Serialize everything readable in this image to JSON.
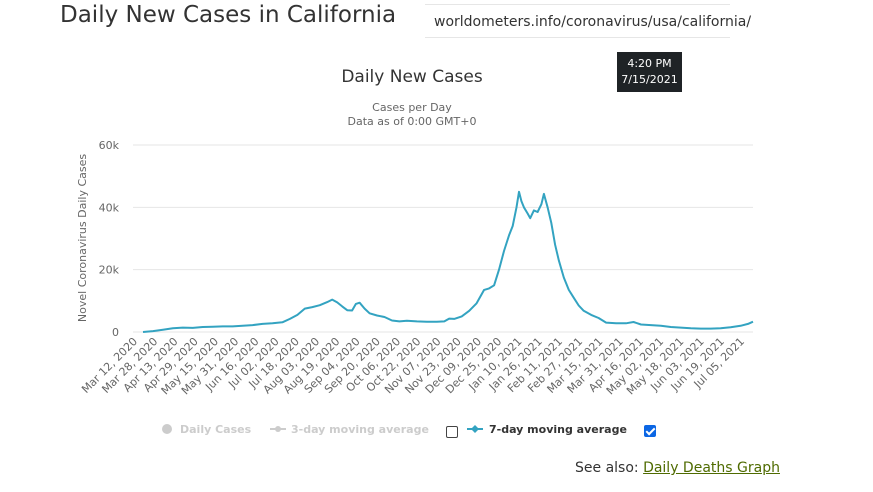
{
  "page": {
    "title": "Daily New Cases in California",
    "url": "worldometers.info/coronavirus/usa/california/",
    "time": "4:20 PM",
    "date": "7/15/2021"
  },
  "see_also": {
    "label": "See also:",
    "link": "Daily Deaths Graph"
  },
  "colors": {
    "line": "#33a3c1",
    "grid": "#e6e6e6",
    "legend_inactive": "#cccccc",
    "checkbox_checked": "#0b66e4"
  },
  "chart_data": {
    "type": "line",
    "title": "Daily New Cases",
    "subtitle": [
      "Cases per Day",
      "Data as of 0:00 GMT+0"
    ],
    "ylabel": "Novel Coronavirus Daily Cases",
    "xlabel": "",
    "ylim": [
      0,
      60000
    ],
    "y_ticks": [
      {
        "value": 0,
        "label": "0"
      },
      {
        "value": 20000,
        "label": "20k"
      },
      {
        "value": 40000,
        "label": "40k"
      },
      {
        "value": 60000,
        "label": "60k"
      }
    ],
    "x_tick_labels": [
      "Mar 12, 2020",
      "Mar 28, 2020",
      "Apr 13, 2020",
      "Apr 29, 2020",
      "May 15, 2020",
      "May 31, 2020",
      "Jun 16, 2020",
      "Jul 02, 2020",
      "Jul 18, 2020",
      "Aug 03, 2020",
      "Aug 19, 2020",
      "Sep 04, 2020",
      "Sep 20, 2020",
      "Oct 06, 2020",
      "Oct 22, 2020",
      "Nov 07, 2020",
      "Nov 23, 2020",
      "Dec 09, 2020",
      "Dec 25, 2020",
      "Jan 10, 2021",
      "Jan 26, 2021",
      "Feb 11, 2021",
      "Feb 27, 2021",
      "Mar 15, 2021",
      "Mar 31, 2021",
      "Apr 16, 2021",
      "May 02, 2021",
      "May 18, 2021",
      "Jun 03, 2021",
      "Jun 19, 2021",
      "Jul 05, 2021"
    ],
    "x_range": [
      0,
      490
    ],
    "legend": [
      {
        "name": "Daily Cases",
        "active": false,
        "checkbox": null
      },
      {
        "name": "3-day moving average",
        "active": false,
        "checkbox": false
      },
      {
        "name": "7-day moving average",
        "active": true,
        "checkbox": true
      }
    ],
    "series": [
      {
        "name": "7-day moving average",
        "points": [
          [
            0,
            0
          ],
          [
            8,
            300
          ],
          [
            16,
            700
          ],
          [
            24,
            1200
          ],
          [
            32,
            1400
          ],
          [
            40,
            1300
          ],
          [
            48,
            1600
          ],
          [
            56,
            1700
          ],
          [
            64,
            1800
          ],
          [
            72,
            1800
          ],
          [
            80,
            2000
          ],
          [
            88,
            2200
          ],
          [
            96,
            2600
          ],
          [
            104,
            2800
          ],
          [
            112,
            3100
          ],
          [
            118,
            4200
          ],
          [
            124,
            5500
          ],
          [
            130,
            7500
          ],
          [
            136,
            8000
          ],
          [
            142,
            8600
          ],
          [
            148,
            9600
          ],
          [
            152,
            10400
          ],
          [
            156,
            9500
          ],
          [
            160,
            8200
          ],
          [
            164,
            7000
          ],
          [
            168,
            6900
          ],
          [
            171,
            9000
          ],
          [
            174,
            9400
          ],
          [
            178,
            7500
          ],
          [
            182,
            6000
          ],
          [
            188,
            5300
          ],
          [
            194,
            4800
          ],
          [
            200,
            3700
          ],
          [
            206,
            3400
          ],
          [
            212,
            3600
          ],
          [
            220,
            3400
          ],
          [
            228,
            3300
          ],
          [
            236,
            3300
          ],
          [
            242,
            3400
          ],
          [
            246,
            4300
          ],
          [
            250,
            4200
          ],
          [
            256,
            5000
          ],
          [
            262,
            6800
          ],
          [
            268,
            9200
          ],
          [
            274,
            13500
          ],
          [
            278,
            14000
          ],
          [
            282,
            15000
          ],
          [
            286,
            20000
          ],
          [
            290,
            26000
          ],
          [
            294,
            31000
          ],
          [
            297,
            34000
          ],
          [
            300,
            40000
          ],
          [
            302,
            45000
          ],
          [
            304,
            42000
          ],
          [
            306,
            40000
          ],
          [
            309,
            38000
          ],
          [
            311,
            36500
          ],
          [
            314,
            39000
          ],
          [
            317,
            38500
          ],
          [
            320,
            41000
          ],
          [
            322,
            44300
          ],
          [
            325,
            40000
          ],
          [
            328,
            35000
          ],
          [
            331,
            28000
          ],
          [
            334,
            23000
          ],
          [
            338,
            17500
          ],
          [
            342,
            13500
          ],
          [
            346,
            11000
          ],
          [
            350,
            8500
          ],
          [
            354,
            6800
          ],
          [
            360,
            5500
          ],
          [
            366,
            4500
          ],
          [
            372,
            3000
          ],
          [
            380,
            2800
          ],
          [
            388,
            2800
          ],
          [
            394,
            3200
          ],
          [
            400,
            2400
          ],
          [
            408,
            2200
          ],
          [
            416,
            2000
          ],
          [
            424,
            1600
          ],
          [
            432,
            1400
          ],
          [
            440,
            1200
          ],
          [
            448,
            1100
          ],
          [
            456,
            1100
          ],
          [
            464,
            1200
          ],
          [
            472,
            1500
          ],
          [
            480,
            2000
          ],
          [
            486,
            2600
          ],
          [
            490,
            3300
          ]
        ]
      }
    ]
  }
}
